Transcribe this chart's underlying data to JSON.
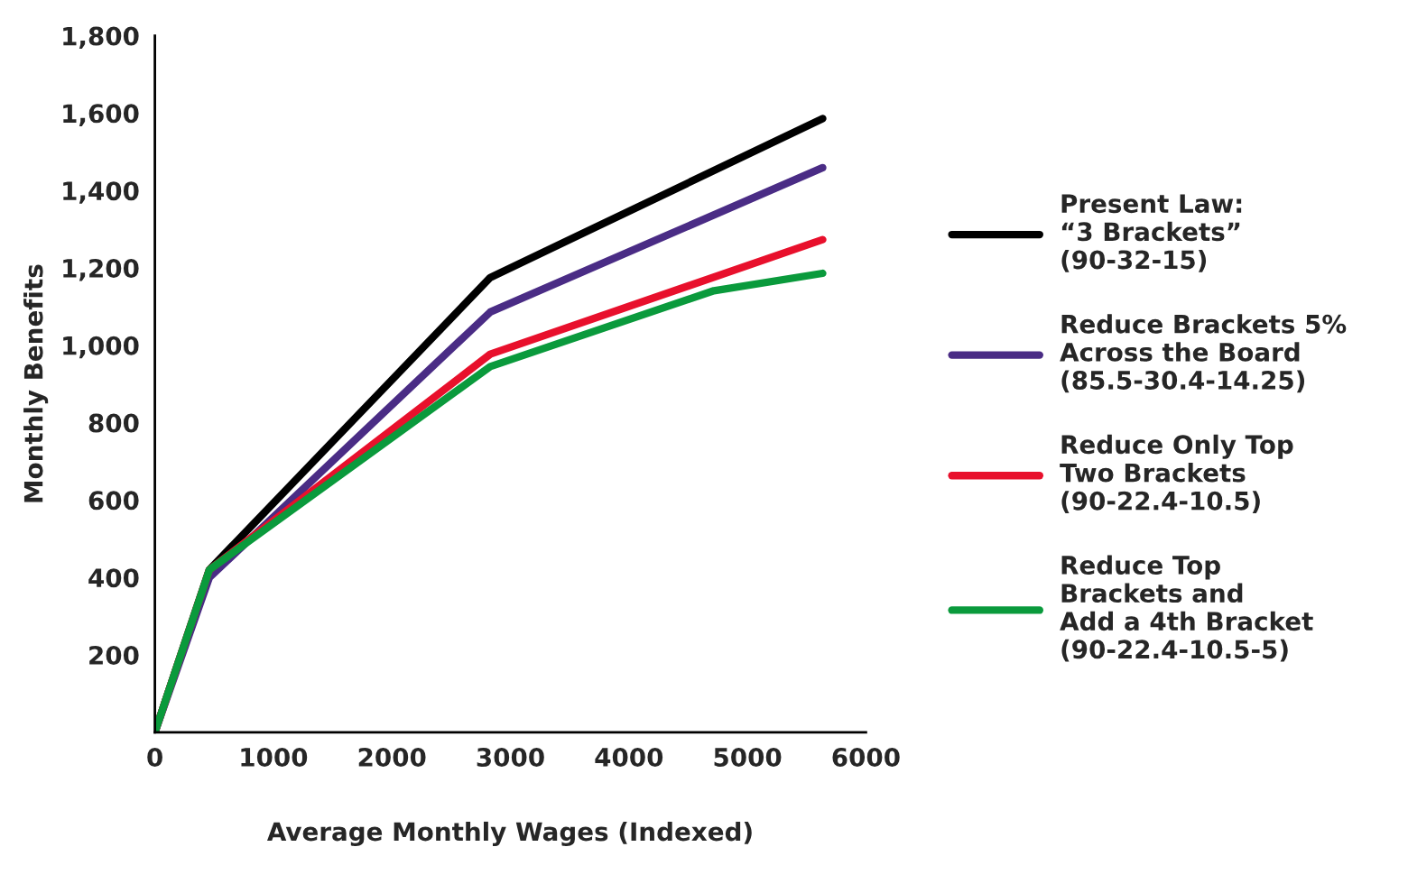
{
  "chart_data": {
    "type": "line",
    "xlabel": "Average Monthly Wages (Indexed)",
    "ylabel": "Monthly Benefits",
    "xlim": [
      0,
      6000
    ],
    "xticks": [
      0,
      1000,
      2000,
      3000,
      4000,
      5000,
      6000
    ],
    "ylim": [
      0,
      1800
    ],
    "yticks": [
      {
        "value": 200,
        "label": "200"
      },
      {
        "value": 400,
        "label": "400"
      },
      {
        "value": 600,
        "label": "600"
      },
      {
        "value": 800,
        "label": "800"
      },
      {
        "value": 1000,
        "label": "1,000"
      },
      {
        "value": 1200,
        "label": "1,200"
      },
      {
        "value": 1400,
        "label": "1,400"
      },
      {
        "value": 1600,
        "label": "1,600"
      },
      {
        "value": 1800,
        "label": "1,800"
      }
    ],
    "grid": false,
    "legend": "right",
    "marker": "none",
    "line_style": "solid",
    "series": [
      {
        "name": "Present Law:\n“3 Brackets”\n(90-32-15)",
        "color": "#000000",
        "x": [
          0,
          460,
          2830,
          5635
        ],
        "values": [
          0,
          420,
          1175,
          1586
        ]
      },
      {
        "name": "Reduce Brackets 5%\nAcross the Board\n(85.5-30.4-14.25)",
        "color": "#4a2c85",
        "x": [
          0,
          460,
          2830,
          5635
        ],
        "values": [
          0,
          400,
          1086,
          1459
        ]
      },
      {
        "name": "Reduce Only Top\nTwo Brackets\n(90-22.4-10.5)",
        "color": "#e8102c",
        "x": [
          0,
          460,
          2830,
          5635
        ],
        "values": [
          0,
          420,
          977,
          1273
        ]
      },
      {
        "name": "Reduce Top\nBrackets and\nAdd a 4th Bracket\n(90-22.4-10.5-5)",
        "color": "#0a9a3c",
        "x": [
          0,
          460,
          2830,
          4717,
          5635
        ],
        "values": [
          0,
          420,
          945,
          1141,
          1186
        ]
      }
    ]
  }
}
